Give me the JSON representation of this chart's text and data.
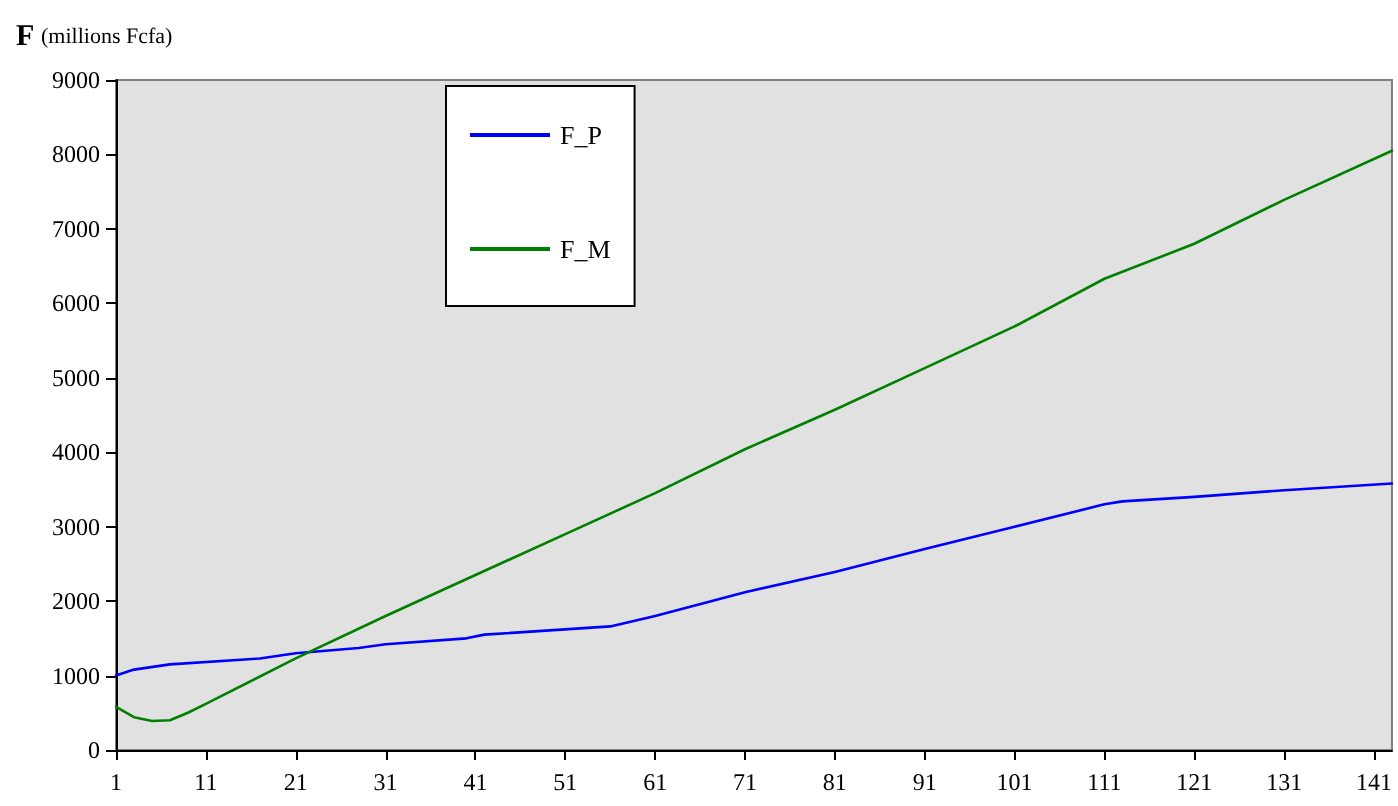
{
  "chart_data": {
    "type": "line",
    "ylabel": "F (millions Fcfa)",
    "xlim": [
      1,
      143
    ],
    "xticks": [
      1,
      11,
      21,
      31,
      41,
      51,
      61,
      71,
      81,
      91,
      101,
      111,
      121,
      131,
      141
    ],
    "ylim": [
      0,
      9000
    ],
    "yticks": [
      0,
      1000,
      2000,
      3000,
      4000,
      5000,
      6000,
      7000,
      8000,
      9000
    ],
    "grid": false,
    "legend": "top",
    "marker": "none",
    "line_style": "solid",
    "series": [
      {
        "name": "F_P",
        "color": "#0000ff",
        "x": [
          1,
          3,
          7,
          17,
          21,
          28,
          31,
          40,
          42,
          56,
          61,
          71,
          81,
          91,
          101,
          111,
          113,
          121,
          131,
          143
        ],
        "values": [
          1000,
          1080,
          1150,
          1230,
          1300,
          1370,
          1420,
          1500,
          1550,
          1660,
          1800,
          2120,
          2390,
          2700,
          3000,
          3300,
          3340,
          3400,
          3490,
          3580
        ]
      },
      {
        "name": "F_M",
        "color": "#008000",
        "x": [
          1,
          3,
          5,
          7,
          9,
          11,
          21,
          31,
          41,
          51,
          61,
          71,
          81,
          91,
          101,
          111,
          121,
          131,
          143
        ],
        "values": [
          580,
          440,
          390,
          400,
          500,
          620,
          1230,
          1800,
          2350,
          2900,
          3450,
          4040,
          4570,
          5130,
          5690,
          6330,
          6800,
          7390,
          8050
        ]
      }
    ]
  }
}
